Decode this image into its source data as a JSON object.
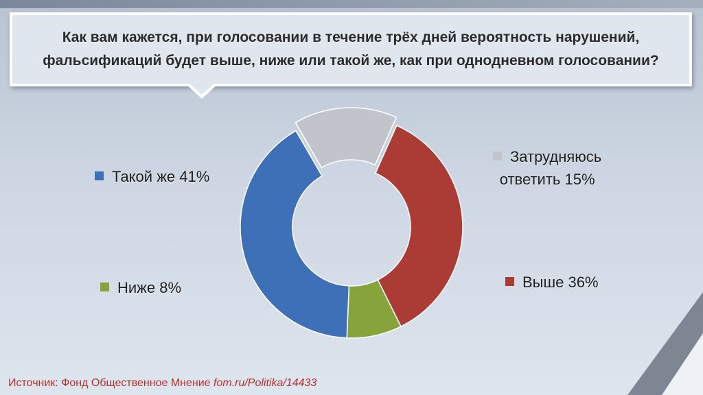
{
  "header": {
    "title": "Как вам кажется, при голосовании в течение трёх дней вероятность нарушений,\nфальсификаций будет выше, ниже или такой же, как при однодневном голосовании?"
  },
  "chart_data": {
    "type": "pie",
    "donut": true,
    "title": "Как вам кажется, при голосовании в течение трёх дней вероятность нарушений, фальсификаций будет выше, ниже или такой же, как при однодневном голосовании?",
    "slices": [
      {
        "name": "Затрудняюсь ответить",
        "value": 15,
        "label_lines": [
          "Затрудняюсь",
          "ответить 15%"
        ],
        "color": "#c1c5cb",
        "exploded": true
      },
      {
        "name": "Выше",
        "value": 36,
        "label_lines": [
          "Выше 36%"
        ],
        "color": "#ab3b35",
        "exploded": false
      },
      {
        "name": "Ниже",
        "value": 8,
        "label_lines": [
          "Ниже 8%"
        ],
        "color": "#86a33c",
        "exploded": false
      },
      {
        "name": "Такой же",
        "value": 41,
        "label_lines": [
          "Такой же 41%"
        ],
        "color": "#3d70b6",
        "exploded": false
      }
    ],
    "legend_placement": "around"
  },
  "footer": {
    "source_label": "Источник: Фонд Общественное Мнение ",
    "source_url": "fom.ru/Politika/14433"
  }
}
